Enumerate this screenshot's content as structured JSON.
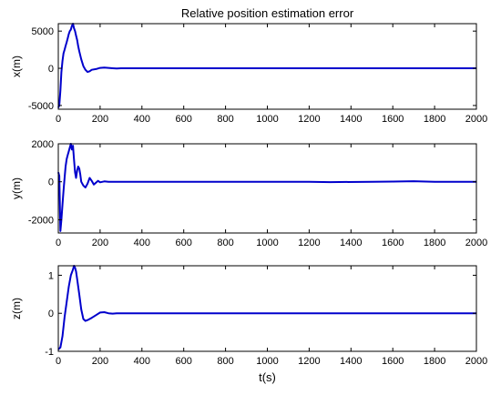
{
  "title": "Relative position estimation error",
  "xlabel": "t(s)",
  "line_color": "#0000cc",
  "chart_data": [
    {
      "type": "line",
      "ylabel": "x(m)",
      "xlim": [
        0,
        2000
      ],
      "ylim": [
        -5500,
        6000
      ],
      "xticks": [
        "0",
        "200",
        "400",
        "600",
        "800",
        "1000",
        "1200",
        "1400",
        "1600",
        "1800",
        "2000"
      ],
      "yticks": [
        {
          "value": -5000,
          "label": "-5000"
        },
        {
          "value": 0,
          "label": "0"
        },
        {
          "value": 5000,
          "label": "5000"
        }
      ],
      "series": [
        {
          "x": [
            0,
            5,
            10,
            15,
            20,
            25,
            30,
            35,
            40,
            45,
            50,
            55,
            60,
            65,
            70,
            75,
            80,
            85,
            90,
            95,
            100,
            110,
            120,
            130,
            140,
            150,
            160,
            180,
            200,
            220,
            240,
            260,
            280,
            300,
            400,
            600,
            800,
            1000,
            1200,
            1400,
            1600,
            1800,
            2000
          ],
          "y": [
            -5300,
            -5000,
            -3000,
            -500,
            1000,
            2000,
            2500,
            3000,
            3500,
            4000,
            4600,
            5000,
            5200,
            5700,
            6000,
            5400,
            5000,
            4400,
            3800,
            3000,
            2300,
            1200,
            300,
            -200,
            -500,
            -400,
            -200,
            -100,
            50,
            100,
            50,
            0,
            -30,
            0,
            0,
            0,
            0,
            0,
            0,
            0,
            0,
            0,
            0
          ]
        }
      ]
    },
    {
      "type": "line",
      "ylabel": "y(m)",
      "xlim": [
        0,
        2000
      ],
      "ylim": [
        -2700,
        2000
      ],
      "xticks": [
        "0",
        "200",
        "400",
        "600",
        "800",
        "1000",
        "1200",
        "1400",
        "1600",
        "1800",
        "2000"
      ],
      "yticks": [
        {
          "value": -2000,
          "label": "-2000"
        },
        {
          "value": 0,
          "label": "0"
        },
        {
          "value": 2000,
          "label": "2000"
        }
      ],
      "series": [
        {
          "x": [
            0,
            5,
            10,
            15,
            20,
            25,
            30,
            35,
            40,
            45,
            50,
            55,
            60,
            65,
            70,
            75,
            80,
            85,
            90,
            95,
            100,
            105,
            110,
            120,
            130,
            140,
            150,
            160,
            170,
            180,
            190,
            200,
            220,
            240,
            260,
            280,
            300,
            400,
            600,
            800,
            1000,
            1200,
            1300,
            1500,
            1600,
            1700,
            1800,
            2000
          ],
          "y": [
            500,
            300,
            -2600,
            -2000,
            -1200,
            -500,
            200,
            800,
            1200,
            1400,
            1600,
            1800,
            2000,
            1700,
            1900,
            1200,
            500,
            200,
            600,
            800,
            700,
            400,
            0,
            -200,
            -300,
            -100,
            200,
            50,
            -150,
            -50,
            50,
            -30,
            20,
            0,
            0,
            0,
            0,
            0,
            0,
            0,
            0,
            0,
            -20,
            0,
            10,
            30,
            0,
            0
          ]
        }
      ]
    },
    {
      "type": "line",
      "ylabel": "z(m)",
      "xlim": [
        0,
        2000
      ],
      "ylim": [
        -1,
        1.25
      ],
      "xticks": [
        "0",
        "200",
        "400",
        "600",
        "800",
        "1000",
        "1200",
        "1400",
        "1600",
        "1800",
        "2000"
      ],
      "yticks": [
        {
          "value": -1,
          "label": "-1"
        },
        {
          "value": 0,
          "label": "0"
        },
        {
          "value": 1,
          "label": "1"
        }
      ],
      "series": [
        {
          "x": [
            0,
            10,
            20,
            30,
            40,
            50,
            60,
            70,
            75,
            80,
            85,
            90,
            100,
            110,
            120,
            130,
            140,
            150,
            160,
            180,
            200,
            220,
            240,
            260,
            280,
            300,
            400,
            600,
            800,
            1000,
            1200,
            1400,
            1600,
            1800,
            2000
          ],
          "y": [
            -0.95,
            -0.9,
            -0.6,
            -0.1,
            0.3,
            0.7,
            1.0,
            1.15,
            1.25,
            1.2,
            1.1,
            0.9,
            0.5,
            0.1,
            -0.15,
            -0.2,
            -0.18,
            -0.15,
            -0.12,
            -0.05,
            0.02,
            0.03,
            0.0,
            -0.01,
            0,
            0,
            0,
            0,
            0,
            0,
            0,
            0,
            0,
            0,
            0
          ]
        }
      ]
    }
  ]
}
